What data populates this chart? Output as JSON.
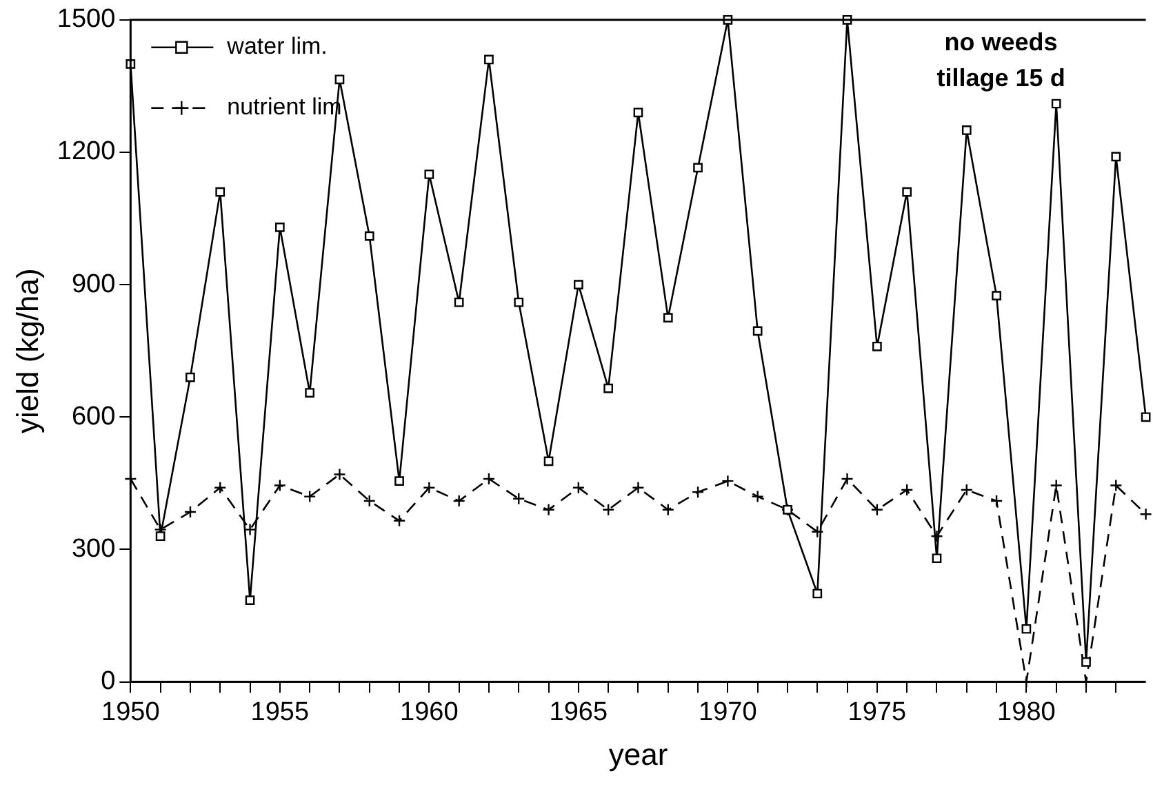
{
  "chart_data": {
    "type": "line",
    "xlabel": "year",
    "ylabel": "yield (kg/ha)",
    "x": [
      1950,
      1951,
      1952,
      1953,
      1954,
      1955,
      1956,
      1957,
      1958,
      1959,
      1960,
      1961,
      1962,
      1963,
      1964,
      1965,
      1966,
      1967,
      1968,
      1969,
      1970,
      1971,
      1972,
      1973,
      1974,
      1975,
      1976,
      1977,
      1978,
      1979,
      1980,
      1981,
      1982,
      1983,
      1984
    ],
    "series": [
      {
        "name": "water lim.",
        "color": "#000000",
        "marker": "square",
        "line_style": "solid",
        "values": [
          1400,
          330,
          690,
          1110,
          185,
          1030,
          655,
          1365,
          1010,
          455,
          1150,
          860,
          1410,
          860,
          500,
          900,
          665,
          1290,
          825,
          1165,
          1500,
          795,
          390,
          200,
          1500,
          760,
          1110,
          280,
          1250,
          875,
          120,
          1310,
          45,
          1190,
          600
        ]
      },
      {
        "name": "nutrient lim",
        "color": "#000000",
        "marker": "cross",
        "line_style": "dashed",
        "values": [
          460,
          345,
          385,
          440,
          345,
          445,
          420,
          470,
          410,
          365,
          440,
          410,
          460,
          415,
          390,
          440,
          390,
          440,
          390,
          430,
          455,
          420,
          390,
          340,
          460,
          390,
          435,
          330,
          435,
          410,
          0,
          445,
          0,
          445,
          380
        ]
      }
    ],
    "xlim": [
      1950,
      1984
    ],
    "xticks": [
      1950,
      {
        "value": 1951,
        "label": null
      },
      {
        "value": 1952,
        "label": null
      },
      {
        "value": 1953,
        "label": null
      },
      {
        "value": 1954,
        "label": null
      },
      1955,
      {
        "value": 1956,
        "label": null
      },
      {
        "value": 1957,
        "label": null
      },
      {
        "value": 1958,
        "label": null
      },
      {
        "value": 1959,
        "label": null
      },
      1960,
      {
        "value": 1961,
        "label": null
      },
      {
        "value": 1962,
        "label": null
      },
      {
        "value": 1963,
        "label": null
      },
      {
        "value": 1964,
        "label": null
      },
      1965,
      {
        "value": 1966,
        "label": null
      },
      {
        "value": 1967,
        "label": null
      },
      {
        "value": 1968,
        "label": null
      },
      {
        "value": 1969,
        "label": null
      },
      1970,
      {
        "value": 1971,
        "label": null
      },
      {
        "value": 1972,
        "label": null
      },
      {
        "value": 1973,
        "label": null
      },
      {
        "value": 1974,
        "label": null
      },
      1975,
      {
        "value": 1976,
        "label": null
      },
      {
        "value": 1977,
        "label": null
      },
      {
        "value": 1978,
        "label": null
      },
      {
        "value": 1979,
        "label": null
      },
      1980,
      {
        "value": 1981,
        "label": null
      },
      {
        "value": 1982,
        "label": null
      },
      {
        "value": 1983,
        "label": null
      }
    ],
    "ylim": [
      0,
      1500
    ],
    "yticks": [
      0,
      300,
      600,
      900,
      1200,
      1500
    ],
    "grid": false,
    "legend": "top left",
    "annotations": [
      "no weeds",
      "tillage 15 d"
    ]
  }
}
